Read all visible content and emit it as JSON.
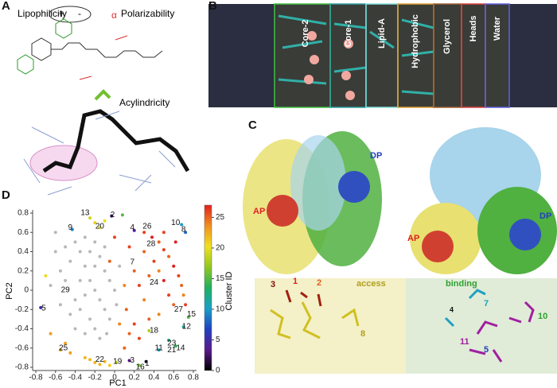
{
  "panel_labels": [
    "A",
    "B",
    "C",
    "D"
  ],
  "panel_a": {
    "texts": [
      "Lipophilicity",
      "+",
      "-",
      "α",
      "Polarizability",
      "Acylindricity"
    ]
  },
  "panel_b": {
    "layers": [
      "Core-2",
      "Core-1",
      "Lipid-A",
      "Hydrophobic",
      "Glycerol",
      "Heads",
      "Water"
    ]
  },
  "panel_c": {
    "sites": [
      "AP",
      "DP",
      "AP",
      "DP"
    ],
    "detail_labels": [
      "access",
      "binding"
    ],
    "residues": [
      "3",
      "1",
      "2",
      "8",
      "7",
      "4",
      "10",
      "11",
      "5"
    ]
  },
  "chart_data": {
    "type": "scatter",
    "xlabel": "PC1",
    "ylabel": "PC2",
    "colorbar_label": "Cluster ID",
    "xlim": [
      -0.8,
      0.8
    ],
    "ylim": [
      -0.8,
      0.8
    ],
    "xticks": [
      -0.8,
      -0.6,
      -0.4,
      -0.2,
      0,
      0.2,
      0.4,
      0.6,
      0.8
    ],
    "yticks": [
      -0.8,
      -0.6,
      -0.4,
      -0.2,
      0,
      0.2,
      0.4,
      0.6,
      0.8
    ],
    "clim": [
      0,
      27
    ],
    "cticks": [
      0,
      5,
      10,
      15,
      20,
      25
    ],
    "colormap": [
      "#000000",
      "#5a1a8c",
      "#2040c0",
      "#1aa0c8",
      "#20b060",
      "#90c820",
      "#f0e020",
      "#f09020",
      "#e02020"
    ],
    "unclustered_color": "#b8b8b8",
    "x": [
      0.3,
      0.38,
      0.45,
      0.5,
      0.55,
      0.6,
      0.65,
      0.68,
      0.7,
      0.72,
      0.3,
      0.4,
      0.45,
      0.35,
      0.5,
      0.55,
      0.6,
      0.3,
      0.25,
      0.2,
      0.15,
      0.1,
      0.12,
      0.2,
      0.35,
      0.45,
      0.15,
      0.25,
      0.05,
      0.1,
      0.5,
      0.62,
      -0.05,
      0.0,
      0.08,
      0.68,
      0.72,
      0.75,
      0.7,
      0.55,
      0.45,
      0.62,
      0.35,
      0.25,
      0.32,
      -0.75,
      -0.43,
      -0.03,
      0.2,
      -0.15,
      -0.2,
      -0.1,
      -0.25,
      -0.2,
      -0.25,
      -0.3,
      -0.15,
      -0.1,
      -0.05,
      0.02,
      -0.55,
      -0.5,
      -0.45,
      -0.65,
      -0.7,
      0.15,
      -0.6,
      -0.55,
      -0.5,
      -0.45,
      -0.4,
      -0.35,
      -0.3,
      -0.25,
      -0.2,
      -0.15,
      -0.1,
      -0.05,
      -0.3,
      -0.35,
      -0.4,
      -0.45,
      -0.25,
      -0.2,
      -0.1,
      -0.05,
      -0.15,
      -0.2,
      -0.3,
      -0.1,
      0.0,
      0.05,
      -0.6,
      -0.5,
      -0.65,
      -0.4,
      -0.3,
      -0.15,
      -0.55,
      -0.2,
      -0.35,
      0.02,
      -0.08,
      -0.25
    ],
    "y": [
      0.6,
      0.55,
      0.5,
      0.42,
      0.35,
      0.25,
      0.15,
      0.05,
      -0.05,
      -0.15,
      0.4,
      0.3,
      0.2,
      0.15,
      0.1,
      -0.05,
      -0.15,
      -0.1,
      0.05,
      0.2,
      0.45,
      0.05,
      -0.2,
      -0.35,
      -0.3,
      -0.25,
      -0.45,
      -0.5,
      -0.35,
      -0.6,
      0.6,
      0.5,
      0.3,
      0.55,
      0.78,
      0.68,
      0.6,
      -0.28,
      -0.38,
      -0.52,
      -0.62,
      -0.58,
      -0.42,
      -0.78,
      -0.74,
      -0.18,
      0.63,
      0.77,
      0.62,
      0.65,
      0.7,
      0.72,
      0.75,
      -0.75,
      -0.72,
      -0.7,
      -0.77,
      -0.74,
      -0.78,
      -0.75,
      -0.62,
      -0.55,
      -0.65,
      -0.45,
      0.15,
      -0.73,
      0.4,
      0.2,
      0.1,
      0.3,
      0.5,
      0.4,
      0.25,
      0.1,
      0.0,
      -0.1,
      -0.2,
      -0.3,
      -0.05,
      -0.2,
      -0.1,
      -0.25,
      -0.3,
      -0.4,
      0.2,
      0.1,
      0.35,
      0.5,
      0.55,
      0.45,
      0.0,
      0.25,
      0.6,
      0.45,
      0.05,
      -0.4,
      -0.45,
      -0.5,
      -0.15,
      0.25,
      0.1,
      -0.15,
      -0.45,
      0.4
    ],
    "values": [
      26,
      27,
      25,
      26,
      25,
      27,
      26,
      25,
      24,
      26,
      25,
      26,
      24,
      25,
      27,
      26,
      25,
      24,
      26,
      25,
      26,
      24,
      25,
      26,
      25,
      24,
      25,
      26,
      24,
      25,
      26,
      27,
      25,
      26,
      15,
      10,
      8,
      15,
      12,
      13,
      11,
      14,
      18,
      16,
      1,
      5,
      9,
      2,
      4,
      20,
      21,
      20,
      19,
      22,
      22,
      22,
      22,
      22,
      21,
      19,
      23,
      23,
      23,
      23,
      20,
      3,
      null,
      null,
      null,
      null,
      null,
      null,
      null,
      null,
      null,
      null,
      null,
      null,
      null,
      null,
      null,
      null,
      null,
      null,
      null,
      null,
      null,
      null,
      null,
      null,
      null,
      null,
      null,
      null,
      null,
      null,
      null,
      null,
      null,
      null,
      null,
      null,
      null,
      null
    ],
    "annotations": [
      {
        "text": "13",
        "x": -0.3,
        "y": 0.8
      },
      {
        "text": "2",
        "x": -0.02,
        "y": 0.78
      },
      {
        "text": "9",
        "x": -0.45,
        "y": 0.65
      },
      {
        "text": "20",
        "x": -0.15,
        "y": 0.66
      },
      {
        "text": "4",
        "x": 0.18,
        "y": 0.65
      },
      {
        "text": "26",
        "x": 0.33,
        "y": 0.66
      },
      {
        "text": "10",
        "x": 0.62,
        "y": 0.7
      },
      {
        "text": "8",
        "x": 0.7,
        "y": 0.63
      },
      {
        "text": "28",
        "x": 0.37,
        "y": 0.48
      },
      {
        "text": "7",
        "x": 0.18,
        "y": 0.29
      },
      {
        "text": "24",
        "x": 0.4,
        "y": 0.08
      },
      {
        "text": "29",
        "x": -0.5,
        "y": 0.0
      },
      {
        "text": "27",
        "x": 0.65,
        "y": -0.2
      },
      {
        "text": "15",
        "x": 0.78,
        "y": -0.25
      },
      {
        "text": "5",
        "x": -0.72,
        "y": -0.19
      },
      {
        "text": "12",
        "x": 0.73,
        "y": -0.38
      },
      {
        "text": "18",
        "x": 0.4,
        "y": -0.42
      },
      {
        "text": "23",
        "x": 0.58,
        "y": -0.55
      },
      {
        "text": "25",
        "x": -0.52,
        "y": -0.6
      },
      {
        "text": "11",
        "x": 0.45,
        "y": -0.6
      },
      {
        "text": "14",
        "x": 0.67,
        "y": -0.6
      },
      {
        "text": "21",
        "x": 0.58,
        "y": -0.62
      },
      {
        "text": "22",
        "x": -0.15,
        "y": -0.72
      },
      {
        "text": "19",
        "x": 0.03,
        "y": -0.74
      },
      {
        "text": "3",
        "x": 0.18,
        "y": -0.73
      },
      {
        "text": "16",
        "x": 0.26,
        "y": -0.8
      },
      {
        "text": "1",
        "x": 0.33,
        "y": -0.76
      }
    ]
  }
}
